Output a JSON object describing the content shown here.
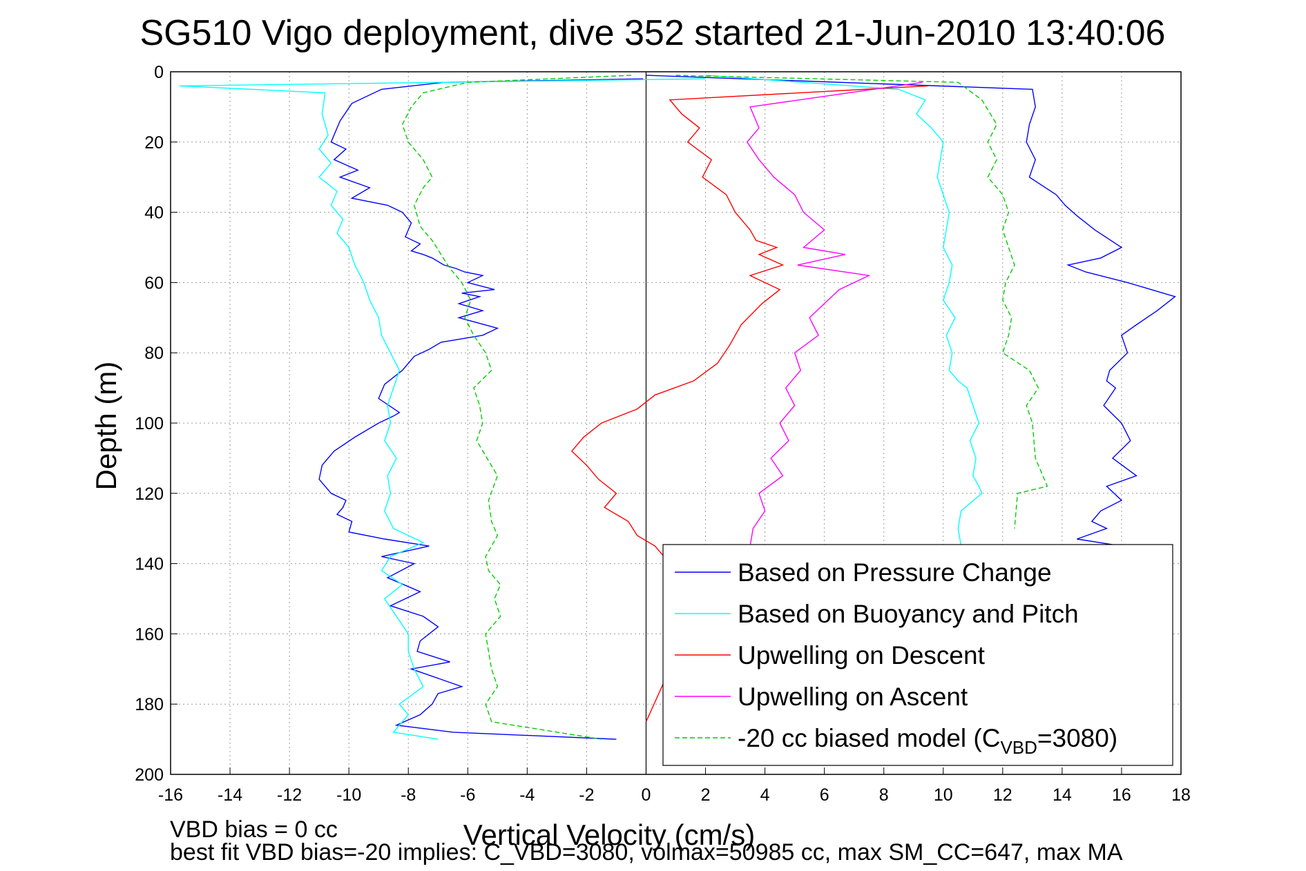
{
  "chart_data": {
    "type": "line",
    "title": "SG510 Vigo deployment, dive 352 started 21-Jun-2010 13:40:06",
    "xlabel": "Vertical Velocity (cm/s)",
    "ylabel": "Depth (m)",
    "xlim": [
      -16,
      18
    ],
    "ylim": [
      0,
      200
    ],
    "y_reversed": true,
    "grid": true,
    "xticks": [
      "-16",
      "-14",
      "-12",
      "-10",
      "-8",
      "-6",
      "-4",
      "-2",
      "0",
      "2",
      "4",
      "6",
      "8",
      "10",
      "12",
      "14",
      "16",
      "18"
    ],
    "yticks": [
      "0",
      "20",
      "40",
      "60",
      "80",
      "100",
      "120",
      "140",
      "160",
      "180",
      "200"
    ],
    "legend_position": "bottom-right",
    "footnote_lines": [
      "VBD bias = 0 cc",
      "best fit VBD bias=-20 implies: C_VBD=3080, volmax=50985 cc, max SM_CC=647, max MA"
    ],
    "series": [
      {
        "name": "Based on Pressure Change",
        "color": "#0000ff",
        "dash": "solid",
        "x": [
          -0.1,
          -6.8,
          -8.9,
          -9.9,
          -10.3,
          -10.6,
          -10.1,
          -10.5,
          -9.7,
          -10.3,
          -9.3,
          -9.9,
          -8.7,
          -8.2,
          -7.9,
          -8.0,
          -8.1,
          -7.6,
          -7.9,
          -7.5,
          -7.2,
          -7.0,
          -6.8,
          -6.4,
          -6.1,
          -5.5,
          -6.0,
          -5.1,
          -6.2,
          -5.6,
          -6.3,
          -5.5,
          -6.3,
          -5.0,
          -5.5,
          -6.9,
          -7.3,
          -7.8,
          -8.2,
          -8.8,
          -9.0,
          -8.3,
          -8.5,
          -9.0,
          -9.8,
          -10.5,
          -10.9,
          -11.0,
          -10.6,
          -10.1,
          -10.2,
          -10.4,
          -9.9,
          -10.0,
          -8.8,
          -7.3,
          -8.9,
          -7.8,
          -8.7,
          -7.6,
          -8.6,
          -7.5,
          -7.0,
          -7.3,
          -7.6,
          -7.7,
          -6.6,
          -7.9,
          -6.2,
          -7.0,
          -7.2,
          -7.6,
          -8.4,
          -6.5,
          -1.0
        ],
        "y": [
          2,
          3,
          5,
          9,
          14,
          20,
          22,
          25,
          28,
          30,
          33,
          36,
          38,
          40,
          43,
          45,
          47,
          49,
          51,
          52,
          53,
          54,
          55,
          56,
          57,
          58,
          60,
          62,
          63,
          64,
          66,
          68,
          70,
          73,
          75,
          77,
          79,
          81,
          85,
          89,
          93,
          97,
          98,
          100,
          104,
          108,
          112,
          116,
          120,
          122,
          124,
          126,
          128,
          131,
          133,
          135,
          138,
          140,
          144,
          148,
          152,
          155,
          158,
          160,
          162,
          165,
          168,
          170,
          175,
          177,
          180,
          183,
          186,
          188,
          190
        ]
      },
      {
        "name": "Based on Buoyancy and Pitch",
        "color": "#00ffff",
        "dash": "solid",
        "x": [
          2.0,
          -15.7,
          -10.8,
          -10.9,
          -10.7,
          -11.0,
          -10.6,
          -11.0,
          -10.4,
          -10.6,
          -10.2,
          -10.4,
          -10.0,
          -9.8,
          -9.5,
          -9.3,
          -9.0,
          -8.9,
          -8.6,
          -8.3,
          -8.5,
          -8.7,
          -8.6,
          -8.8,
          -8.4,
          -8.7,
          -8.6,
          -8.8,
          -8.5,
          -7.5,
          -8.6,
          -8.9,
          -8.2,
          -8.8,
          -8.4,
          -8.0,
          -8.0,
          -7.8,
          -7.5,
          -8.3,
          -8.0,
          -8.3,
          -8.5,
          -7.0
        ],
        "y": [
          2,
          4,
          6,
          12,
          18,
          22,
          26,
          30,
          34,
          38,
          42,
          46,
          50,
          55,
          60,
          65,
          70,
          75,
          80,
          85,
          90,
          95,
          100,
          105,
          110,
          115,
          120,
          125,
          130,
          134,
          138,
          142,
          146,
          150,
          155,
          160,
          165,
          170,
          175,
          180,
          183,
          186,
          188,
          190
        ]
      },
      {
        "name": "Upwelling on Descent",
        "color": "#ff0000",
        "dash": "solid",
        "x": [
          9.5,
          0.8,
          1.2,
          1.8,
          1.4,
          2.2,
          1.9,
          2.7,
          3.0,
          3.5,
          3.7,
          4.4,
          3.8,
          4.6,
          3.5,
          4.5,
          3.9,
          3.2,
          2.8,
          2.4,
          1.6,
          0.3,
          -0.3,
          -1.5,
          -2.1,
          -2.5,
          -2.0,
          -1.6,
          -1.0,
          -1.4,
          -0.6,
          -0.3,
          0.3,
          0.8,
          0.6,
          1.0,
          0.8,
          0.0
        ],
        "y": [
          4,
          8,
          12,
          16,
          20,
          25,
          30,
          35,
          40,
          45,
          48,
          50,
          52,
          55,
          58,
          62,
          66,
          72,
          78,
          83,
          88,
          92,
          96,
          100,
          104,
          108,
          112,
          116,
          120,
          124,
          128,
          132,
          135,
          140,
          150,
          160,
          170,
          185
        ]
      },
      {
        "name": "Upwelling on Ascent",
        "color": "#ff00ff",
        "dash": "solid",
        "x": [
          9.3,
          3.5,
          3.8,
          3.4,
          3.8,
          4.3,
          5.0,
          5.3,
          6.0,
          5.3,
          6.7,
          5.1,
          7.5,
          6.5,
          6.0,
          5.5,
          5.8,
          5.0,
          5.2,
          4.7,
          5.0,
          4.5,
          4.8,
          4.2,
          4.6,
          3.8,
          4.0,
          3.6,
          3.5
        ],
        "y": [
          3,
          10,
          16,
          20,
          25,
          30,
          35,
          40,
          45,
          50,
          52,
          55,
          58,
          62,
          66,
          70,
          75,
          80,
          85,
          90,
          95,
          100,
          105,
          110,
          115,
          120,
          125,
          130,
          135
        ]
      },
      {
        "name": "-20 cc biased model (C_VBD=3080)",
        "color": "#00cc00",
        "dash": "dashed",
        "x": [
          -0.5,
          -6.0,
          -7.5,
          -7.9,
          -8.2,
          -8.0,
          -7.5,
          -7.2,
          -7.5,
          -7.8,
          -7.6,
          -7.2,
          -6.9,
          -6.6,
          -6.2,
          -5.9,
          -6.1,
          -5.8,
          -5.4,
          -5.2,
          -5.8,
          -5.6,
          -5.5,
          -5.7,
          -5.0,
          -5.3,
          -5.2,
          -5.0,
          -5.4,
          -5.3,
          -4.9,
          -5.1,
          -4.9,
          -5.4,
          -5.2,
          -5.0,
          -5.4,
          -5.2,
          -1.5
        ],
        "y": [
          1,
          3,
          6,
          10,
          15,
          20,
          25,
          30,
          33,
          38,
          44,
          48,
          52,
          56,
          60,
          65,
          70,
          75,
          80,
          85,
          90,
          95,
          100,
          105,
          115,
          122,
          128,
          132,
          138,
          142,
          146,
          150,
          155,
          160,
          170,
          175,
          180,
          185,
          190
        ]
      }
    ],
    "overlay_series_partial": [
      {
        "name": "pressure-change-ascent",
        "color": "#0000ff",
        "x": [
          0,
          13.0,
          13.1,
          12.9,
          12.8,
          13.1,
          12.9,
          13.8,
          14.1,
          14.5,
          15.1,
          16.0,
          15.3,
          14.2,
          14.8,
          16.2,
          17.8,
          17.2,
          16.5,
          16.0,
          16.2,
          15.6,
          15.5,
          15.8,
          15.4,
          16.0,
          16.3,
          15.7,
          16.5,
          15.5,
          16.0,
          15.3,
          15.0,
          15.5,
          14.5,
          16.0,
          15.1,
          14.3,
          15.5
        ],
        "y": [
          1,
          5,
          10,
          15,
          20,
          25,
          30,
          35,
          38,
          41,
          45,
          50,
          53,
          55,
          57,
          60,
          64,
          68,
          72,
          75,
          80,
          85,
          88,
          90,
          95,
          100,
          105,
          110,
          115,
          118,
          122,
          125,
          128,
          130,
          133,
          135,
          138,
          142,
          148
        ]
      },
      {
        "name": "buoyancy-pitch-ascent",
        "color": "#00ffff",
        "x": [
          2,
          8.5,
          9.4,
          9.1,
          9.6,
          10.0,
          9.8,
          10.2,
          10.0,
          10.3,
          10.2,
          10.0,
          10.4,
          10.1,
          10.3,
          10.2,
          10.5,
          10.8,
          11.0,
          11.2,
          10.9,
          11.1,
          11.0,
          11.2,
          11.3,
          10.6,
          10.5,
          10.6,
          10.7,
          10.5
        ],
        "y": [
          1,
          5,
          8,
          12,
          16,
          20,
          30,
          40,
          50,
          55,
          60,
          65,
          70,
          75,
          80,
          85,
          88,
          90,
          95,
          100,
          105,
          110,
          115,
          118,
          120,
          125,
          130,
          135,
          140,
          150
        ]
      },
      {
        "name": "model-ascent",
        "color": "#00cc00",
        "x": [
          1,
          10.5,
          11.3,
          11.8,
          11.5,
          11.8,
          11.5,
          12.0,
          12.2,
          12.0,
          12.2,
          12.4,
          12.1,
          12.0,
          12.3,
          12.2,
          12.0,
          12.9,
          13.2,
          12.8,
          13.0,
          13.1,
          13.5,
          12.5,
          12.4
        ],
        "y": [
          1,
          3,
          8,
          15,
          20,
          25,
          30,
          35,
          40,
          45,
          50,
          55,
          60,
          65,
          70,
          75,
          80,
          85,
          90,
          95,
          100,
          110,
          118,
          120,
          130
        ]
      }
    ]
  }
}
